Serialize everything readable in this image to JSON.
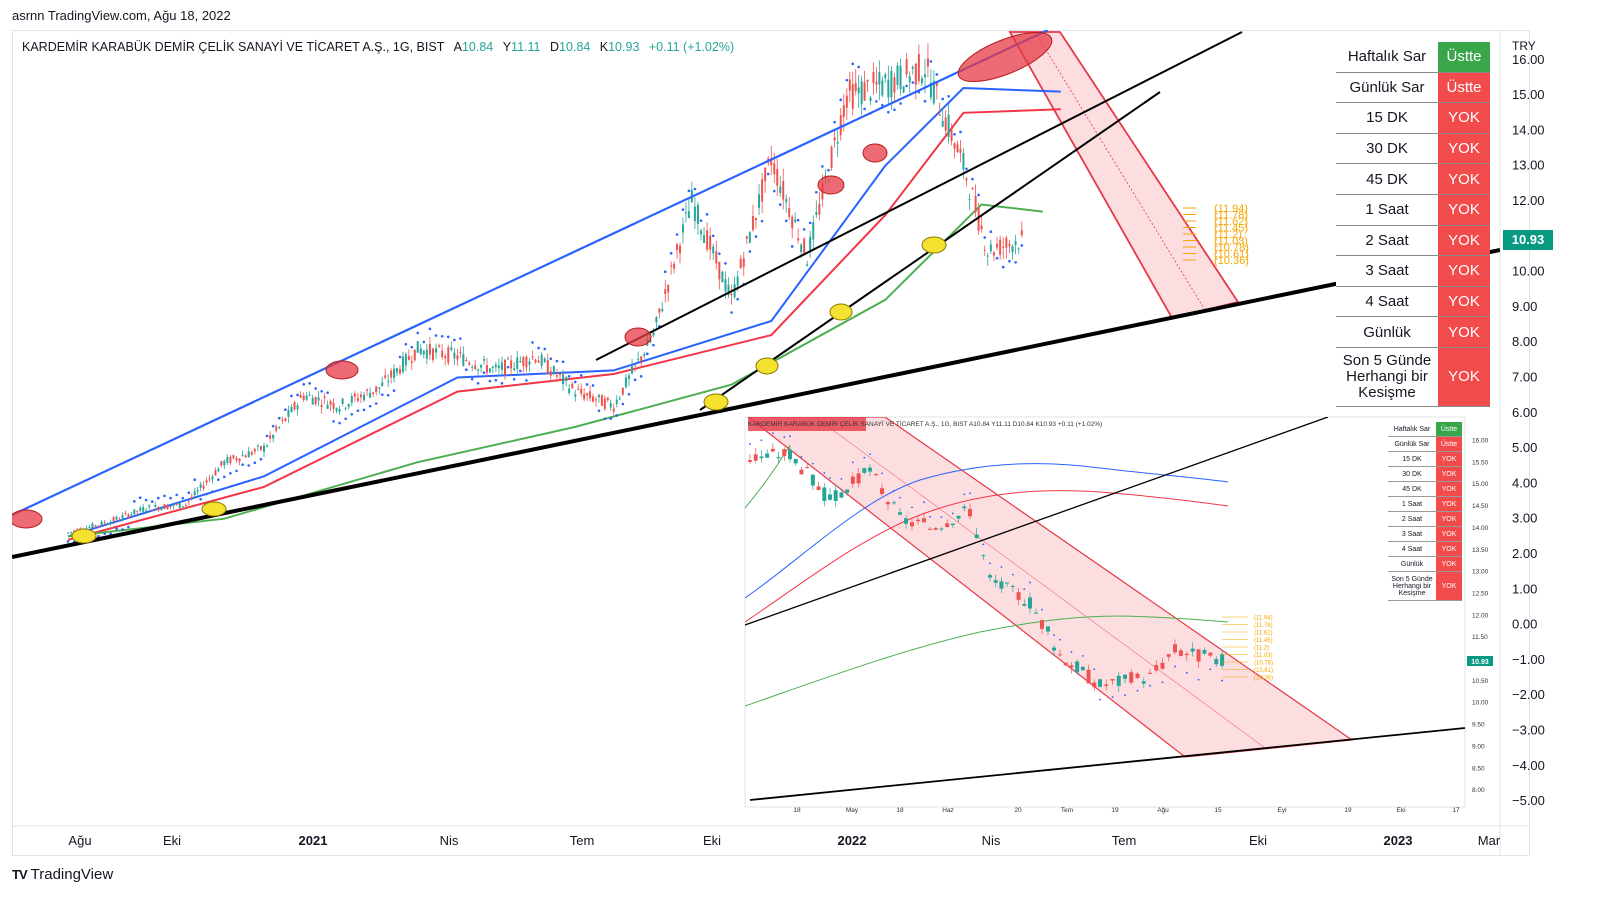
{
  "header": {
    "author_site_date": "asrnn TradingView.com, Ağu 18, 2022"
  },
  "legend": {
    "symbol": "KARDEMİR KARABÜK DEMİR ÇELİK SANAYİ VE TİCARET A.Ş., 1G, BIST",
    "open_label": "A",
    "open": "10.84",
    "high_label": "Y",
    "high": "11.11",
    "low_label": "D",
    "low": "10.84",
    "close_label": "K",
    "close": "10.93",
    "change": "+0.11 (+1.02%)"
  },
  "mini_legend": "KARDEMİR KARABÜK DEMİR ÇELİK SANAYİ VE TİCARET A.Ş., 1G, BIST A10.84 Y11.11 D10.84 K10.93 +0.11 (+1.02%)",
  "status_table": [
    {
      "name": "Haftalık Sar",
      "state": "Üstte",
      "color": "#3aa64a"
    },
    {
      "name": "Günlük Sar",
      "state": "Üstte",
      "color": "#f24b4b"
    },
    {
      "name": "15 DK",
      "state": "YOK",
      "color": "#f24b4b"
    },
    {
      "name": "30 DK",
      "state": "YOK",
      "color": "#f24b4b"
    },
    {
      "name": "45 DK",
      "state": "YOK",
      "color": "#f24b4b"
    },
    {
      "name": "1 Saat",
      "state": "YOK",
      "color": "#f24b4b"
    },
    {
      "name": "2 Saat",
      "state": "YOK",
      "color": "#f24b4b"
    },
    {
      "name": "3 Saat",
      "state": "YOK",
      "color": "#f24b4b"
    },
    {
      "name": "4 Saat",
      "state": "YOK",
      "color": "#f24b4b"
    },
    {
      "name": "Günlük",
      "state": "YOK",
      "color": "#f24b4b"
    },
    {
      "name": "Son 5 Günde Herhangi bir Kesişme",
      "state": "YOK",
      "color": "#f24b4b"
    }
  ],
  "footer": {
    "brand": "TradingView",
    "logo_mark": "TV"
  },
  "chart_data": [
    {
      "type": "candlestick",
      "title": "KARDEMİR KARABÜK DEMİR ÇELİK SANAYİ VE TİCARET A.Ş., 1G, BIST",
      "currency": "TRY",
      "last_price": "10.93",
      "price_badge_color": "#089981",
      "yticks": [
        "16.00",
        "15.00",
        "14.00",
        "13.00",
        "12.00",
        "10.00",
        "9.00",
        "8.00",
        "7.00",
        "6.00",
        "5.00",
        "4.00",
        "3.00",
        "2.00",
        "1.00",
        "0.00",
        "−1.00",
        "−2.00",
        "−3.00",
        "−4.00",
        "−5.00"
      ],
      "xticks": [
        "Ağu",
        "Eki",
        "2021",
        "Nis",
        "Tem",
        "Eki",
        "2022",
        "Nis",
        "Tem",
        "Eki",
        "2023",
        "Mar"
      ],
      "bold_xticks": [
        "2021",
        "2022",
        "2023"
      ],
      "fib_levels": [
        "(11.94)",
        "(11.78)",
        "(11.62)",
        "(11.45)",
        "(11.2)",
        "(11.03)",
        "(10.78)",
        "(10.61)",
        "(10.36)"
      ],
      "price_path": [
        [
          "2020-08-01",
          2.6
        ],
        [
          "2020-09-01",
          2.9
        ],
        [
          "2020-10-01",
          3.3
        ],
        [
          "2020-11-01",
          3.4
        ],
        [
          "2020-12-01",
          4.6
        ],
        [
          "2021-01-01",
          5.0
        ],
        [
          "2021-02-01",
          6.5
        ],
        [
          "2021-03-01",
          6.2
        ],
        [
          "2021-04-01",
          6.7
        ],
        [
          "2021-05-01",
          7.8
        ],
        [
          "2021-06-01",
          7.6
        ],
        [
          "2021-07-01",
          7.2
        ],
        [
          "2021-08-01",
          7.6
        ],
        [
          "2021-09-01",
          6.6
        ],
        [
          "2021-10-01",
          6.2
        ],
        [
          "2021-11-01",
          8.2
        ],
        [
          "2021-12-01",
          12.0
        ],
        [
          "2022-01-01",
          9.2
        ],
        [
          "2022-02-01",
          13.2
        ],
        [
          "2022-03-01",
          10.4
        ],
        [
          "2022-04-01",
          15.0
        ],
        [
          "2022-05-01",
          15.3
        ],
        [
          "2022-06-01",
          15.8
        ],
        [
          "2022-07-01",
          13.0
        ],
        [
          "2022-07-20",
          10.6
        ],
        [
          "2022-08-18",
          10.93
        ]
      ],
      "moving_averages": [
        {
          "color": "#2962ff",
          "points": [
            [
              "2020-08-01",
              2.5
            ],
            [
              "2021-01-01",
              4.2
            ],
            [
              "2021-06-01",
              7.0
            ],
            [
              "2021-10-01",
              7.2
            ],
            [
              "2022-02-01",
              8.6
            ],
            [
              "2022-05-01",
              13.0
            ],
            [
              "2022-07-01",
              15.2
            ],
            [
              "2022-09-15",
              15.1
            ]
          ]
        },
        {
          "color": "#f23645",
          "points": [
            [
              "2020-08-01",
              2.4
            ],
            [
              "2021-01-01",
              3.9
            ],
            [
              "2021-06-01",
              6.6
            ],
            [
              "2021-10-01",
              7.1
            ],
            [
              "2022-02-01",
              8.2
            ],
            [
              "2022-05-01",
              11.6
            ],
            [
              "2022-07-01",
              14.5
            ],
            [
              "2022-09-15",
              14.6
            ]
          ]
        },
        {
          "color": "#4caf50",
          "points": [
            [
              "2020-08-01",
              2.5
            ],
            [
              "2020-12-01",
              3.0
            ],
            [
              "2021-05-01",
              4.6
            ],
            [
              "2021-09-01",
              5.6
            ],
            [
              "2022-01-01",
              6.8
            ],
            [
              "2022-05-01",
              9.2
            ],
            [
              "2022-07-15",
              11.9
            ],
            [
              "2022-09-01",
              11.7
            ]
          ]
        }
      ]
    },
    {
      "type": "candlestick",
      "title": "KARDEMİR KARABÜK DEMİR ÇELİK SANAYİ VE TİCARET A.Ş., 1G, BIST (zoomed inset)",
      "last_price": "10.93",
      "yticks": [
        "16.00",
        "15.50",
        "15.00",
        "14.50",
        "14.00",
        "13.50",
        "13.00",
        "12.50",
        "12.00",
        "11.50",
        "11.00",
        "10.50",
        "10.00",
        "9.50",
        "9.00",
        "8.50",
        "8.00"
      ],
      "xticks": [
        "18",
        "May",
        "18",
        "Haz",
        "20",
        "Tem",
        "19",
        "Ağu",
        "15",
        "Eyl",
        "19",
        "Eki",
        "17"
      ],
      "fib_levels": [
        "(11.94)",
        "(11.78)",
        "(11.62)",
        "(11.45)",
        "(11.2)",
        "(11.03)",
        "(10.78)",
        "(10.61)",
        "(10.36)"
      ]
    }
  ]
}
